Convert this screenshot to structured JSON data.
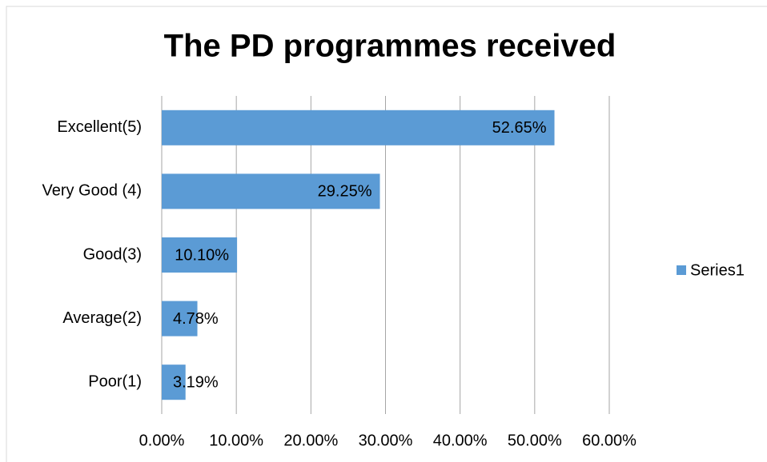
{
  "chart_data": {
    "type": "bar",
    "orientation": "horizontal",
    "title": "The PD programmes received",
    "categories": [
      "Excellent(5)",
      "Very Good (4)",
      "Good(3)",
      "Average(2)",
      "Poor(1)"
    ],
    "series": [
      {
        "name": "Series1",
        "color": "#5b9bd5",
        "values": [
          52.65,
          29.25,
          10.1,
          4.78,
          3.19
        ],
        "value_labels": [
          "52.65%",
          "29.25%",
          "10.10%",
          "4.78%",
          "3.19%"
        ]
      }
    ],
    "xlim": [
      0,
      60
    ],
    "xticks": [
      {
        "value": 0,
        "label": "0.00%"
      },
      {
        "value": 10,
        "label": "10.00%"
      },
      {
        "value": 20,
        "label": "20.00%"
      },
      {
        "value": 30,
        "label": "30.00%"
      },
      {
        "value": 40,
        "label": "40.00%"
      },
      {
        "value": 50,
        "label": "50.00%"
      },
      {
        "value": 60,
        "label": "60.00%"
      }
    ],
    "grid": true,
    "legend": "right"
  }
}
